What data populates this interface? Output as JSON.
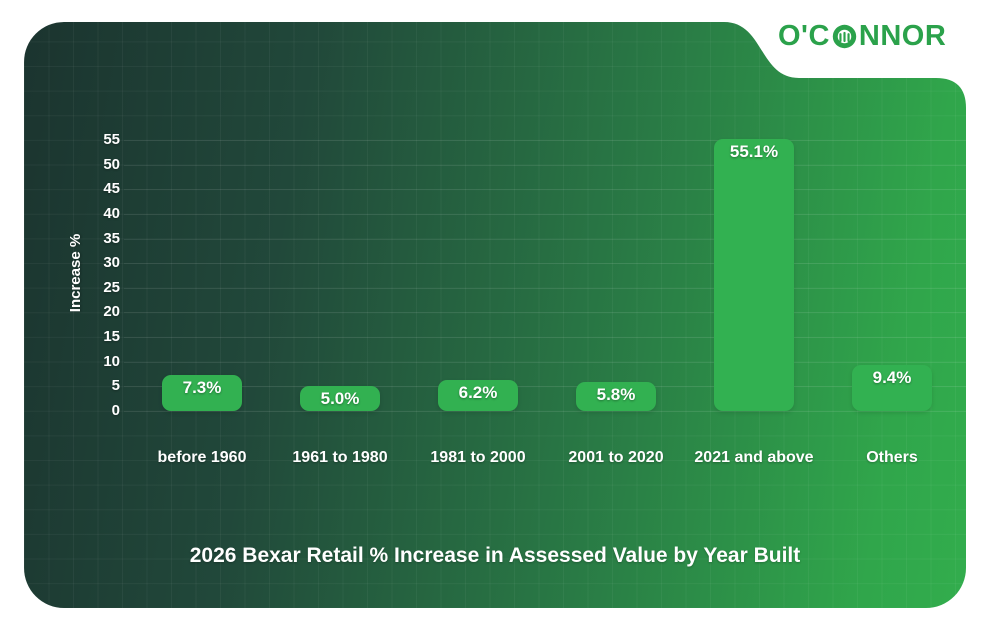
{
  "logo": {
    "text": "O'CONNOR",
    "part_before_icon": "O'C",
    "part_after_icon": "NNOR",
    "color": "#2ba24b"
  },
  "chart_data": {
    "type": "bar",
    "title": "2026 Bexar Retail % Increase in Assessed Value by Year Built",
    "ylabel": "Increase %",
    "xlabel": "",
    "categories": [
      "before 1960",
      "1961 to 1980",
      "1981 to 2000",
      "2001 to 2020",
      "2021 and above",
      "Others"
    ],
    "values": [
      7.3,
      5.0,
      6.2,
      5.8,
      55.1,
      9.4
    ],
    "value_labels": [
      "7.3%",
      "5.0%",
      "6.2%",
      "5.8%",
      "55.1%",
      "9.4%"
    ],
    "yticks": [
      0,
      5,
      10,
      15,
      20,
      25,
      30,
      35,
      40,
      45,
      50,
      55
    ],
    "ylim": [
      0,
      55
    ],
    "grid": true,
    "legend": false,
    "bar_color": "#32b151",
    "text_color": "#ffffff",
    "background_gradient": [
      "#1b342f",
      "#32ad4d"
    ]
  }
}
